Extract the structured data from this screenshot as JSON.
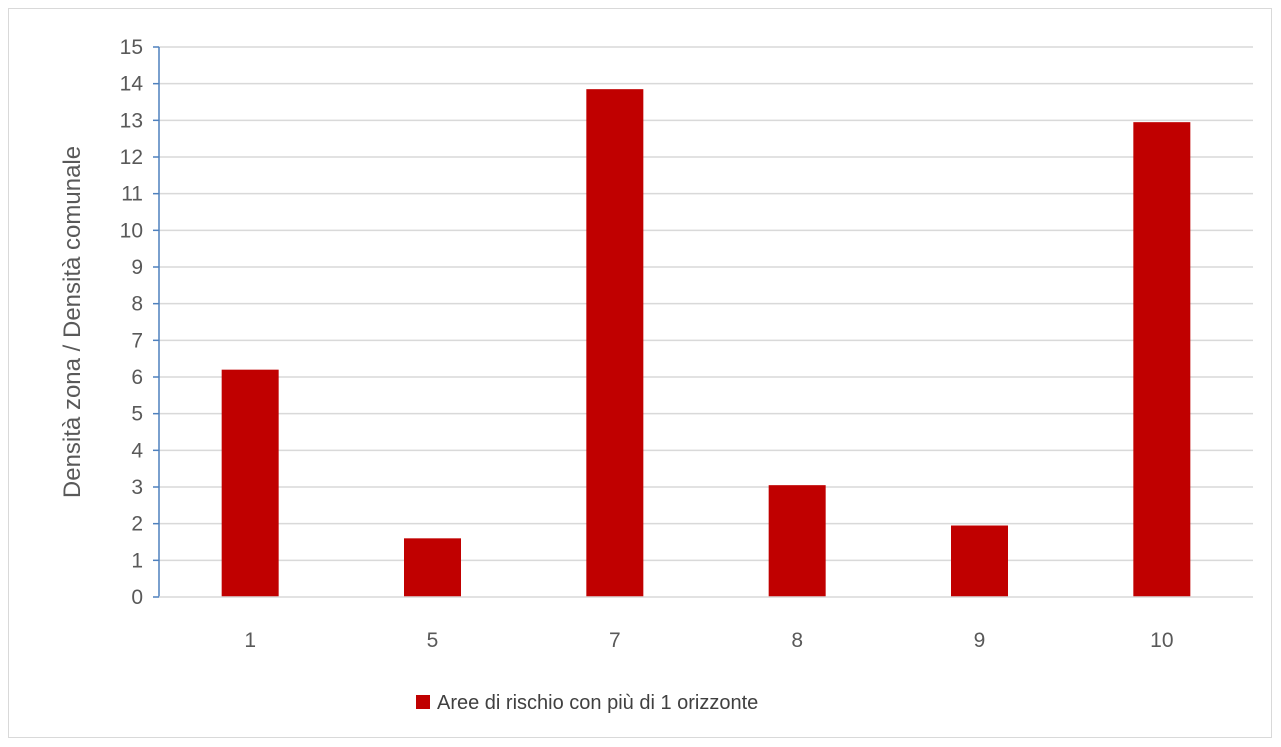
{
  "chart_data": {
    "type": "bar",
    "title": "",
    "xlabel": "",
    "ylabel": "Densità zona / Densità comunale",
    "categories": [
      "1",
      "5",
      "7",
      "8",
      "9",
      "10"
    ],
    "series": [
      {
        "name": "Aree di rischio con più di 1 orizzonte",
        "values": [
          6.2,
          1.6,
          13.85,
          3.05,
          1.95,
          12.95
        ],
        "color": "#c00000"
      }
    ],
    "ylim": [
      0,
      15
    ],
    "yticks": [
      "0",
      "1",
      "2",
      "3",
      "4",
      "5",
      "6",
      "7",
      "8",
      "9",
      "10",
      "11",
      "12",
      "13",
      "14",
      "15"
    ],
    "grid": true,
    "legend_position": "bottom",
    "colors": {
      "gridline": "#d9d9d9",
      "axis": "#4f81bd",
      "bar": "#c00000"
    }
  }
}
